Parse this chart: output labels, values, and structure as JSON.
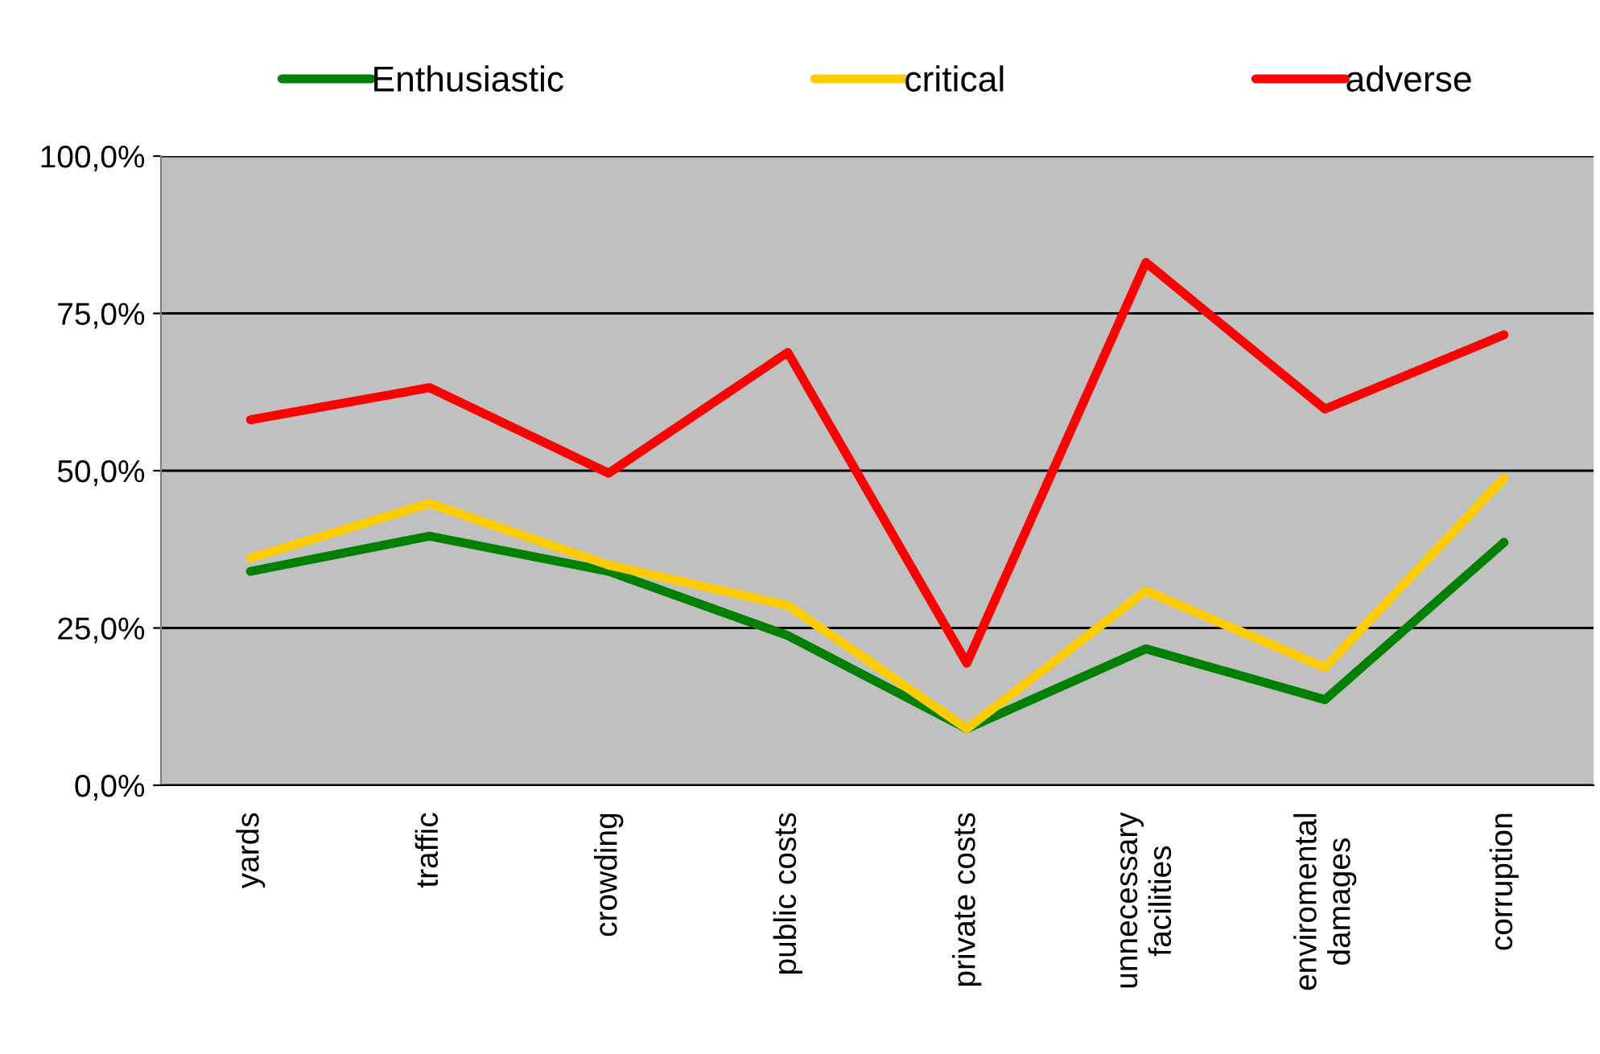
{
  "chart_data": {
    "type": "line",
    "categories": [
      "yards",
      "traffic",
      "crowding",
      "public costs",
      "private costs",
      "unnecessary\nfacilities",
      "enviromental\ndamages",
      "corruption"
    ],
    "series": [
      {
        "name": "Enthusiastic",
        "color": "#008000",
        "values": [
          34.0,
          39.6,
          34.0,
          23.8,
          9.0,
          21.7,
          13.6,
          38.6
        ]
      },
      {
        "name": "critical",
        "color": "#ffcc00",
        "values": [
          36.1,
          44.8,
          35.0,
          28.6,
          9.0,
          30.9,
          18.7,
          48.8
        ]
      },
      {
        "name": "adverse",
        "color": "#ff0000",
        "values": [
          58.1,
          63.2,
          49.6,
          68.8,
          19.4,
          83.1,
          59.8,
          71.6
        ]
      }
    ],
    "ylim": [
      0,
      100
    ],
    "yticks": [
      {
        "value": 0,
        "label": "0,0%"
      },
      {
        "value": 25,
        "label": "25,0%"
      },
      {
        "value": 50,
        "label": "50,0%"
      },
      {
        "value": 75,
        "label": "75,0%"
      },
      {
        "value": 100,
        "label": "100,0%"
      }
    ],
    "grid": "y",
    "legend": "top",
    "marker": "none",
    "line_style": "solid"
  }
}
